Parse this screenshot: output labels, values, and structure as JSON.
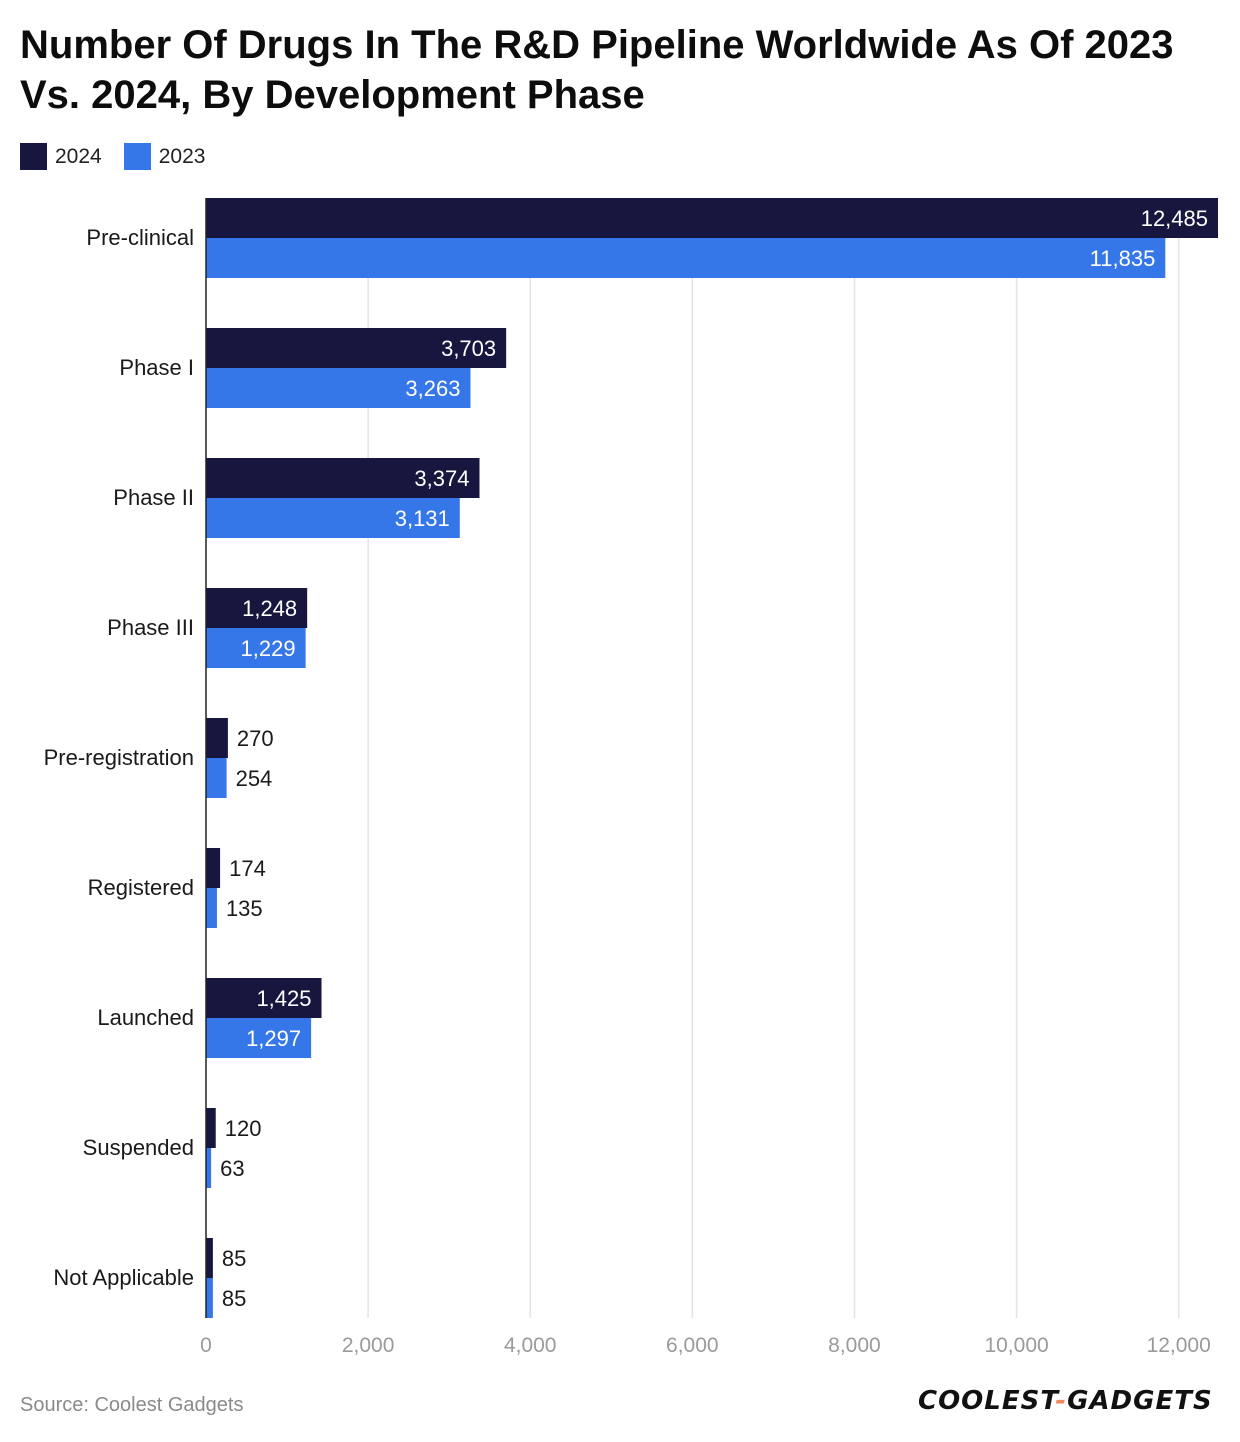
{
  "chart_data": {
    "type": "bar",
    "orientation": "horizontal",
    "title": "Number Of Drugs In The R&D Pipeline Worldwide As Of 2023 Vs. 2024, By Development Phase",
    "categories": [
      "Pre-clinical",
      "Phase I",
      "Phase II",
      "Phase III",
      "Pre-registration",
      "Registered",
      "Launched",
      "Suspended",
      "Not Applicable"
    ],
    "series": [
      {
        "name": "2024",
        "color": "#17163f",
        "values": [
          12485,
          3703,
          3374,
          1248,
          270,
          174,
          1425,
          120,
          85
        ],
        "labels": [
          "12,485",
          "3,703",
          "3,374",
          "1,248",
          "270",
          "174",
          "1,425",
          "120",
          "85"
        ]
      },
      {
        "name": "2023",
        "color": "#3577e8",
        "values": [
          11835,
          3263,
          3131,
          1229,
          254,
          135,
          1297,
          63,
          85
        ],
        "labels": [
          "11,835",
          "3,263",
          "3,131",
          "1,229",
          "254",
          "135",
          "1,297",
          "63",
          "85"
        ]
      }
    ],
    "xlim": [
      0,
      12485
    ],
    "xticks": [
      0,
      2000,
      4000,
      6000,
      8000,
      10000,
      12000
    ],
    "xtick_labels": [
      "0",
      "2,000",
      "4,000",
      "6,000",
      "8,000",
      "10,000",
      "12,000"
    ],
    "grid": true,
    "legend_position": "top-left"
  },
  "footer": {
    "source": "Source: Coolest Gadgets",
    "logo_left": "COOLEST",
    "logo_sep": "-",
    "logo_right": "GADGETS"
  }
}
